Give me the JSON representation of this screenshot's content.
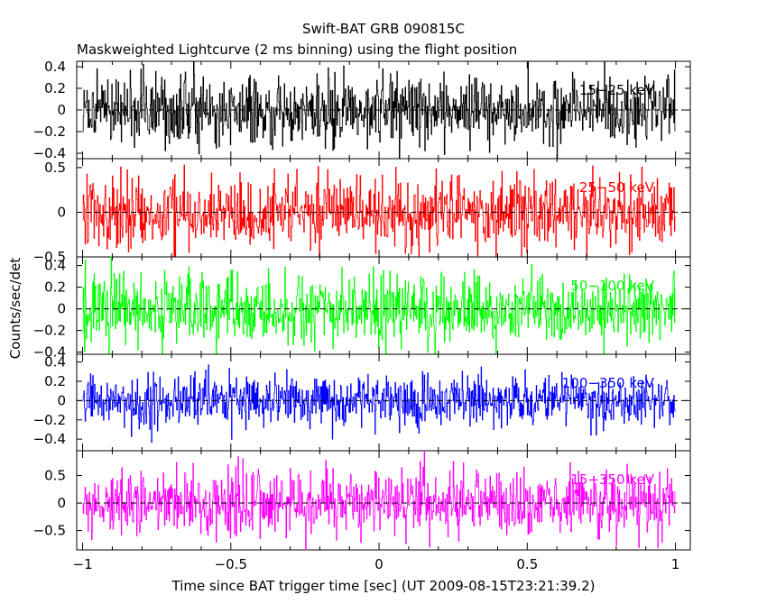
{
  "chart_data": {
    "type": "line",
    "title": "Swift-BAT GRB 090815C",
    "subtitle": "Maskweighted Lightcurve (2 ms binning) using the flight position",
    "xlabel": "Time since BAT trigger time [sec] (UT 2009-08-15T23:21:39.2)",
    "ylabel": "Counts/sec/det",
    "xlim": [
      -1.02,
      1.05
    ],
    "x_ticks": [
      {
        "value": -1,
        "label": "−1"
      },
      {
        "value": -0.5,
        "label": "−0.5"
      },
      {
        "value": 0,
        "label": "0"
      },
      {
        "value": 0.5,
        "label": "0.5"
      },
      {
        "value": 1,
        "label": "1"
      }
    ],
    "x_range": [
      -1,
      1
    ],
    "bin_width": 0.002,
    "grid": false,
    "panels": [
      {
        "name": "15−25 keV",
        "color": "#000000",
        "ylim": [
          -0.45,
          0.45
        ],
        "amplitude": 0.16,
        "y_ticks": [
          {
            "value": 0.4,
            "label": "0.4"
          },
          {
            "value": 0.2,
            "label": "0.2"
          },
          {
            "value": 0,
            "label": "0"
          },
          {
            "value": -0.2,
            "label": "−0.2"
          },
          {
            "value": -0.4,
            "label": "−0.4"
          }
        ]
      },
      {
        "name": "25−50 keV",
        "color": "#ff0000",
        "ylim": [
          -0.5,
          0.6
        ],
        "amplitude": 0.2,
        "y_ticks": [
          {
            "value": 0.5,
            "label": "0.5"
          },
          {
            "value": 0,
            "label": "0"
          },
          {
            "value": -0.5,
            "label": "−0.5"
          }
        ]
      },
      {
        "name": "50−100 keV",
        "color": "#00ff00",
        "ylim": [
          -0.42,
          0.48
        ],
        "amplitude": 0.16,
        "y_ticks": [
          {
            "value": 0.4,
            "label": "0.4"
          },
          {
            "value": 0.2,
            "label": "0.2"
          },
          {
            "value": 0,
            "label": "0"
          },
          {
            "value": -0.2,
            "label": "−0.2"
          },
          {
            "value": -0.4,
            "label": "−0.4"
          }
        ]
      },
      {
        "name": "100−350 keV",
        "color": "#0000ff",
        "ylim": [
          -0.52,
          0.48
        ],
        "amplitude": 0.13,
        "y_ticks": [
          {
            "value": 0.4,
            "label": "0.4"
          },
          {
            "value": 0.2,
            "label": "0.2"
          },
          {
            "value": 0,
            "label": "0"
          },
          {
            "value": -0.2,
            "label": "−0.2"
          },
          {
            "value": -0.4,
            "label": "−0.4"
          }
        ]
      },
      {
        "name": "15−350 keV",
        "color": "#ff00ff",
        "ylim": [
          -0.85,
          0.95
        ],
        "amplitude": 0.3,
        "y_ticks": [
          {
            "value": 0.5,
            "label": "0.5"
          },
          {
            "value": 0,
            "label": "0"
          },
          {
            "value": -0.5,
            "label": "−0.5"
          }
        ]
      }
    ]
  }
}
